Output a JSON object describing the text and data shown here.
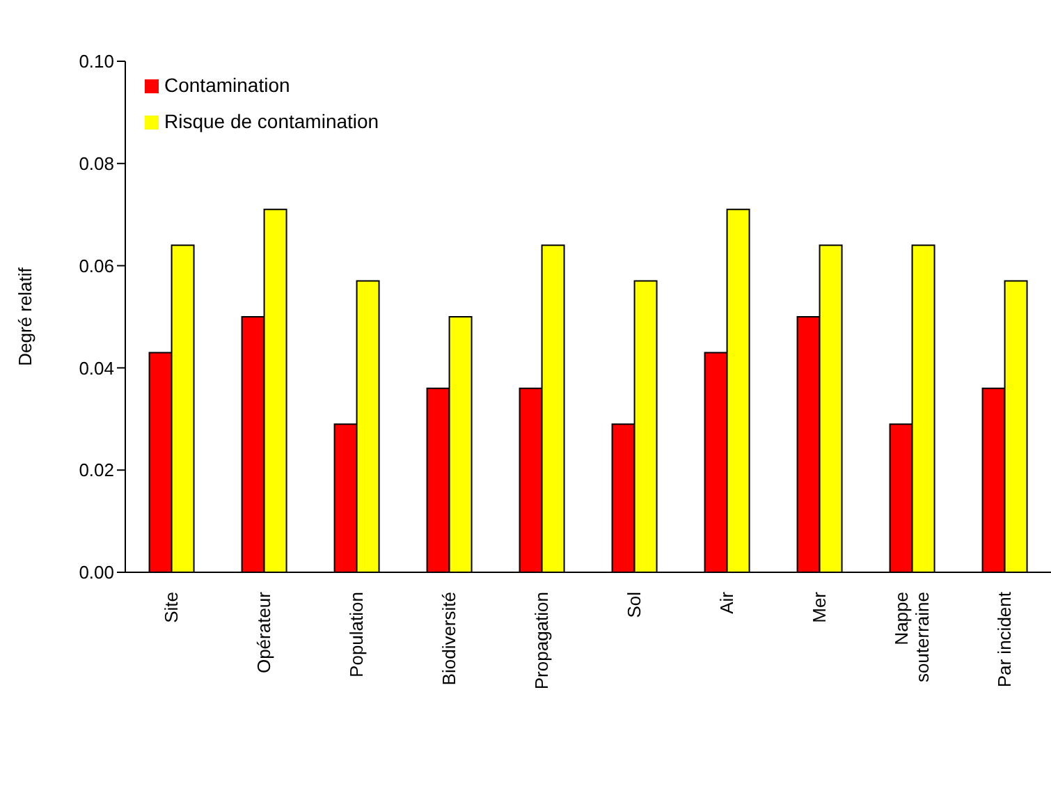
{
  "chart_data": {
    "type": "bar",
    "ylabel": "Degré relatif",
    "categories": [
      "Site",
      "Opérateur",
      "Population",
      "Biodiversité",
      "Propagation",
      "Sol",
      "Air",
      "Mer",
      "Nappe souterraine",
      "Par incident"
    ],
    "series": [
      {
        "name": "Contamination",
        "color": "#ff0000",
        "values": [
          0.043,
          0.05,
          0.029,
          0.036,
          0.036,
          0.029,
          0.043,
          0.05,
          0.029,
          0.036
        ]
      },
      {
        "name": "Risque de contamination",
        "color": "#ffff00",
        "values": [
          0.064,
          0.071,
          0.057,
          0.05,
          0.064,
          0.057,
          0.071,
          0.064,
          0.064,
          0.057
        ]
      }
    ],
    "ylim": [
      0,
      0.1
    ],
    "yticks": [
      {
        "value": 0,
        "label": "0.00"
      },
      {
        "value": 0.02,
        "label": "0.02"
      },
      {
        "value": 0.04,
        "label": "0.04"
      },
      {
        "value": 0.06,
        "label": "0.06"
      },
      {
        "value": 0.08,
        "label": "0.08"
      },
      {
        "value": 0.1,
        "label": "0.10"
      }
    ],
    "grid": false,
    "legend": "top left"
  }
}
